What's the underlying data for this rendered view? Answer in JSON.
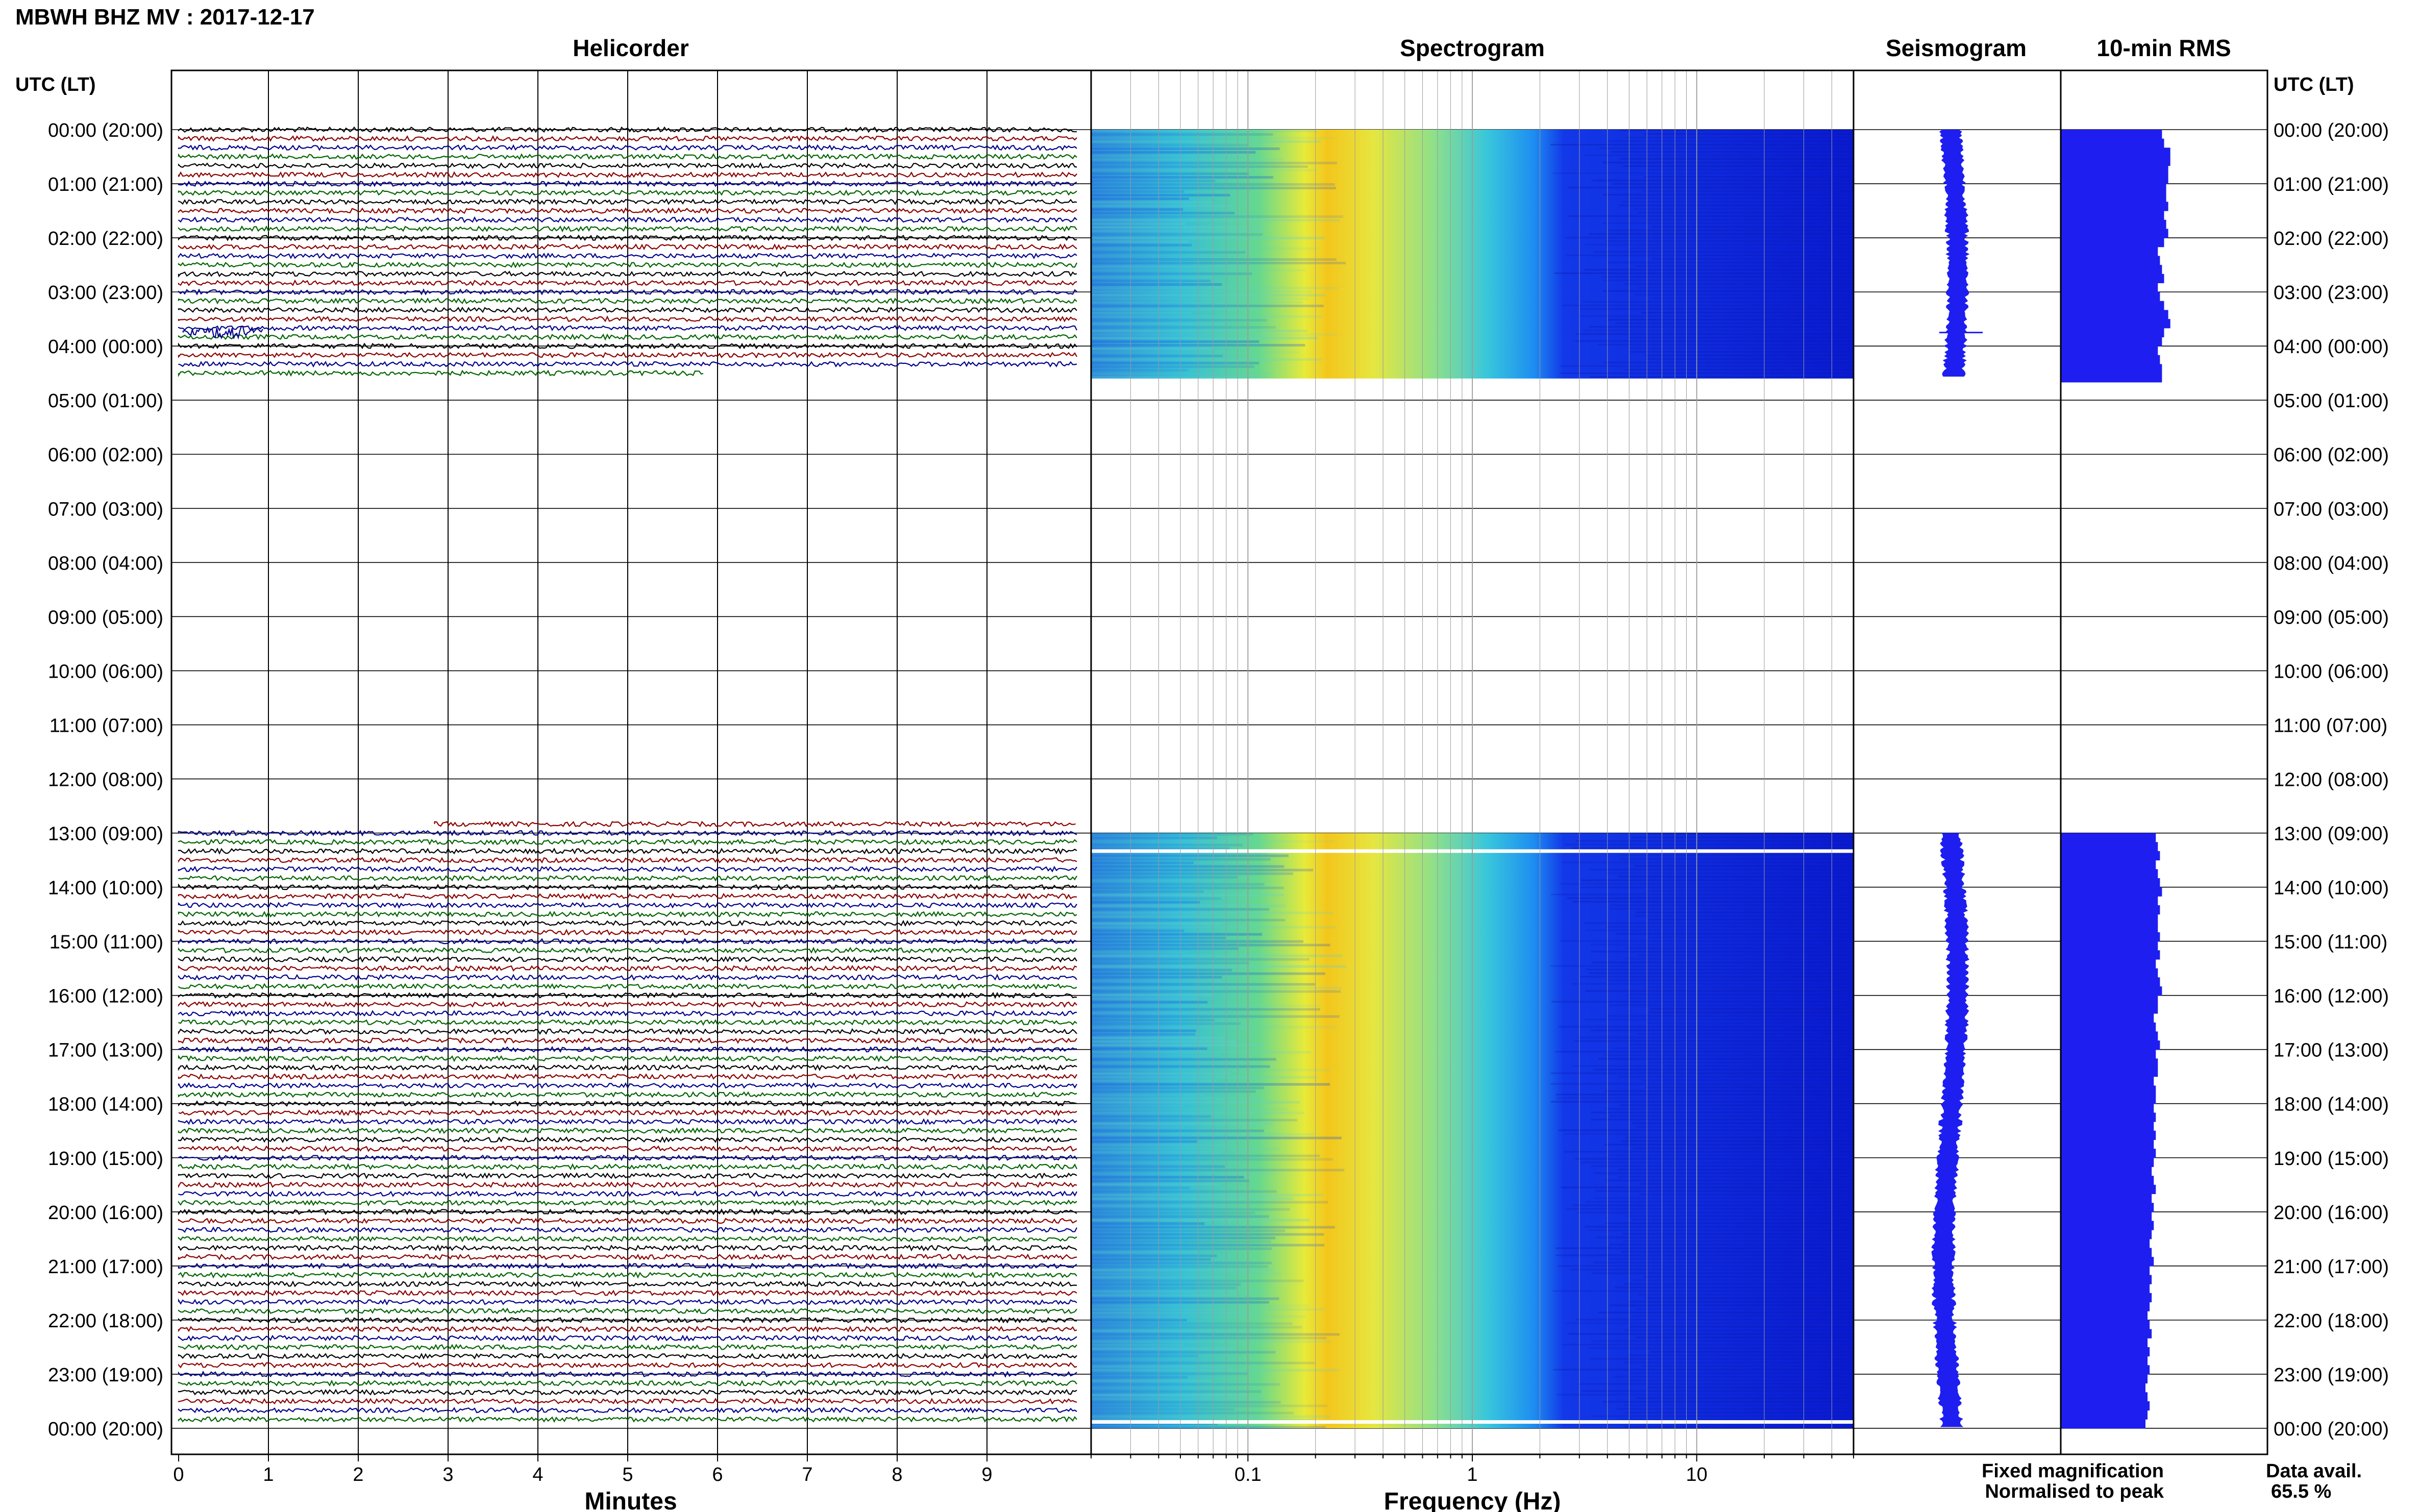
{
  "page_title": "MBWH BHZ MV : 2017-12-17",
  "time_header_left": "UTC (LT)",
  "time_header_right": "UTC (LT)",
  "panels": {
    "helicorder": "Helicorder",
    "spectrogram": "Spectrogram",
    "seismogram": "Seismogram",
    "rms": "10-min RMS"
  },
  "axis_labels": {
    "minutes": "Minutes",
    "frequency": "Frequency (Hz)"
  },
  "footer": {
    "fixed": "Fixed magnification",
    "normalised": "Normalised to peak",
    "avail_label": "Data avail.",
    "avail_value": "65.5 %"
  },
  "colors": {
    "fixed": "#1010ff",
    "normalised": "#ff1010",
    "seismo_fill": "#1e1ef0",
    "trace_colors": [
      "#000000",
      "#8b0000",
      "#00008b",
      "#006400"
    ],
    "spectro_cmap": [
      "#0a1ad6",
      "#1f5bf0",
      "#28a8f0",
      "#3ed6c8",
      "#8ee68a",
      "#e8ea3a",
      "#f4c21a"
    ]
  },
  "chart_data": [
    {
      "type": "line",
      "name": "helicorder",
      "title": "Helicorder",
      "xlabel": "Minutes",
      "xlim": [
        0,
        10
      ],
      "xticks": [
        0,
        1,
        2,
        3,
        4,
        5,
        6,
        7,
        8,
        9
      ],
      "hour_ticks_utc": [
        "00:00",
        "01:00",
        "02:00",
        "03:00",
        "04:00",
        "05:00",
        "06:00",
        "07:00",
        "08:00",
        "09:00",
        "10:00",
        "11:00",
        "12:00",
        "13:00",
        "14:00",
        "15:00",
        "16:00",
        "17:00",
        "18:00",
        "19:00",
        "20:00",
        "21:00",
        "22:00",
        "23:00",
        "00:00"
      ],
      "hour_ticks_lt": [
        "20:00",
        "21:00",
        "22:00",
        "23:00",
        "00:00",
        "01:00",
        "02:00",
        "03:00",
        "04:00",
        "05:00",
        "06:00",
        "07:00",
        "08:00",
        "09:00",
        "10:00",
        "11:00",
        "12:00",
        "13:00",
        "14:00",
        "15:00",
        "16:00",
        "17:00",
        "18:00",
        "19:00",
        "20:00"
      ],
      "data_segments_utc_hours": [
        [
          0,
          4.53
        ],
        [
          12.83,
          24
        ]
      ],
      "event_near_hour": 3.75
    },
    {
      "type": "heatmap",
      "name": "spectrogram",
      "title": "Spectrogram",
      "xlabel": "Frequency (Hz)",
      "xscale": "log",
      "xlim": [
        0.02,
        50
      ],
      "xticks": [
        0.1,
        1,
        10
      ],
      "peak_frequency_hz": 0.3,
      "data_segments_utc_hours": [
        [
          0,
          4.6
        ],
        [
          13,
          24
        ]
      ]
    },
    {
      "type": "line",
      "name": "seismogram",
      "title": "Seismogram",
      "data_segments_utc_hours": [
        [
          0,
          4.6
        ],
        [
          13,
          24
        ]
      ]
    },
    {
      "type": "bar",
      "name": "rms",
      "title": "10-min RMS",
      "bin_minutes": 10,
      "values_relative": {
        "segment_1": [
          0.49,
          0.5,
          0.53,
          0.53,
          0.52,
          0.52,
          0.51,
          0.51,
          0.52,
          0.5,
          0.51,
          0.52,
          0.5,
          0.47,
          0.48,
          0.49,
          0.5,
          0.47,
          0.48,
          0.5,
          0.52,
          0.53,
          0.5,
          0.49,
          0.47,
          0.48,
          0.49,
          0.49
        ],
        "segment_2": [
          0.46,
          0.47,
          0.48,
          0.46,
          0.47,
          0.48,
          0.49,
          0.47,
          0.48,
          0.47,
          0.47,
          0.48,
          0.47,
          0.48,
          0.46,
          0.47,
          0.48,
          0.49,
          0.47,
          0.47,
          0.45,
          0.46,
          0.47,
          0.48,
          0.46,
          0.47,
          0.47,
          0.45,
          0.46,
          0.46,
          0.45,
          0.46,
          0.45,
          0.46,
          0.45,
          0.46,
          0.45,
          0.44,
          0.45,
          0.46,
          0.44,
          0.45,
          0.44,
          0.45,
          0.44,
          0.43,
          0.44,
          0.45,
          0.43,
          0.44,
          0.43,
          0.44,
          0.43,
          0.42,
          0.43,
          0.44,
          0.42,
          0.43,
          0.42,
          0.43,
          0.42,
          0.41,
          0.42,
          0.43,
          0.42,
          0.41
        ]
      },
      "data_segments_utc_hours": [
        [
          0,
          4.67
        ],
        [
          13,
          24
        ]
      ]
    }
  ]
}
